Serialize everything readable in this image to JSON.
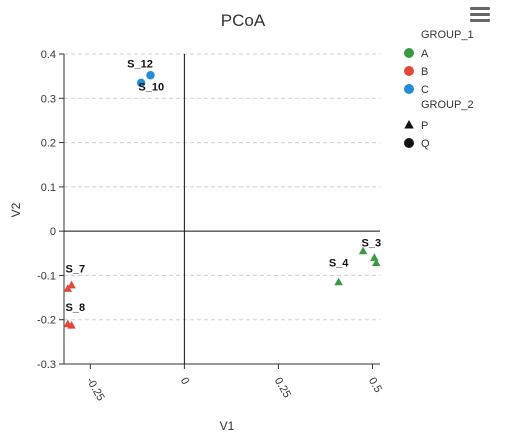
{
  "chart_data": {
    "type": "scatter",
    "title": "PCoA",
    "xlabel": "V1",
    "ylabel": "V2",
    "xlim": [
      -0.32,
      0.52
    ],
    "ylim": [
      -0.3,
      0.4
    ],
    "xticks": [
      -0.25,
      0,
      0.25,
      0.5
    ],
    "xtick_labels": [
      "-0.25",
      "0",
      "0.25",
      "0.5"
    ],
    "yticks": [
      -0.3,
      -0.2,
      -0.1,
      0,
      0.1,
      0.2,
      0.3,
      0.4
    ],
    "ytick_labels": [
      "-0.3",
      "-0.2",
      "-0.1",
      "0",
      "0.1",
      "0.2",
      "0.3",
      "0.4"
    ],
    "grid": "horizontal-dashed",
    "legend_position": "right",
    "colors": {
      "A": "#3a9a44",
      "B": "#e5463b",
      "C": "#1f8fd6"
    },
    "legend": {
      "group1_title": "GROUP_1",
      "group1": [
        {
          "name": "A",
          "color": "#3a9a44"
        },
        {
          "name": "B",
          "color": "#e5463b"
        },
        {
          "name": "C",
          "color": "#1f8fd6"
        }
      ],
      "group2_title": "GROUP_2",
      "group2": [
        {
          "name": "P",
          "shape": "triangle"
        },
        {
          "name": "Q",
          "shape": "circle"
        }
      ]
    },
    "points": [
      {
        "x": -0.115,
        "y": 0.335,
        "group1": "C",
        "group2": "Q",
        "label": ""
      },
      {
        "x": -0.09,
        "y": 0.352,
        "group1": "C",
        "group2": "Q",
        "label": ""
      },
      {
        "x": -0.31,
        "y": -0.13,
        "group1": "B",
        "group2": "P",
        "label": ""
      },
      {
        "x": -0.3,
        "y": -0.122,
        "group1": "B",
        "group2": "P",
        "label": ""
      },
      {
        "x": -0.31,
        "y": -0.21,
        "group1": "B",
        "group2": "P",
        "label": ""
      },
      {
        "x": -0.3,
        "y": -0.213,
        "group1": "B",
        "group2": "P",
        "label": ""
      },
      {
        "x": 0.41,
        "y": -0.115,
        "group1": "A",
        "group2": "P",
        "label": ""
      },
      {
        "x": 0.475,
        "y": -0.045,
        "group1": "A",
        "group2": "P",
        "label": ""
      },
      {
        "x": 0.505,
        "y": -0.06,
        "group1": "A",
        "group2": "P",
        "label": ""
      },
      {
        "x": 0.51,
        "y": -0.072,
        "group1": "A",
        "group2": "P",
        "label": ""
      }
    ],
    "annotations": [
      {
        "text": "S_12",
        "x": -0.118,
        "y": 0.37
      },
      {
        "text": "S_10",
        "x": -0.088,
        "y": 0.318
      },
      {
        "text": "S_7",
        "x": -0.29,
        "y": -0.093
      },
      {
        "text": "S_8",
        "x": -0.29,
        "y": -0.18
      },
      {
        "text": "S_4",
        "x": 0.41,
        "y": -0.08
      },
      {
        "text": "S_3",
        "x": 0.497,
        "y": -0.035
      }
    ]
  }
}
